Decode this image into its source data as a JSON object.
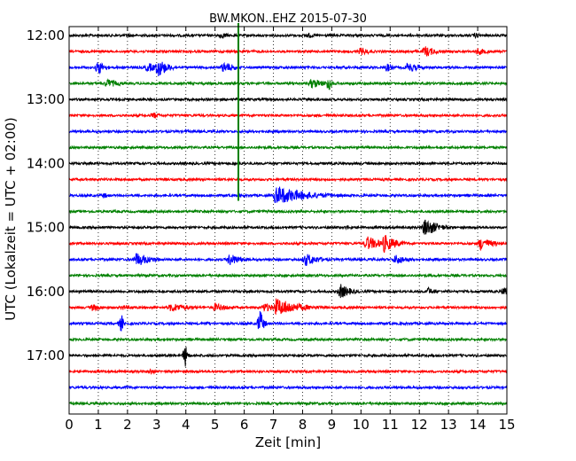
{
  "chart_data": {
    "type": "line",
    "title": "BW.MKON..EHZ 2015-07-30",
    "xlabel": "Zeit  [min]",
    "ylabel": "UTC (Lokalzeit = UTC + 02:00)",
    "xlim": [
      0,
      15
    ],
    "x_ticks": [
      "0",
      "1",
      "2",
      "3",
      "4",
      "5",
      "6",
      "7",
      "8",
      "9",
      "10",
      "11",
      "12",
      "13",
      "14",
      "15"
    ],
    "y_ticks": [
      "12:00",
      "13:00",
      "14:00",
      "15:00",
      "16:00",
      "17:00"
    ],
    "grid": "vertical dotted at every minute",
    "row_interval_min": 15,
    "start_time": "12:00",
    "row_colors": [
      "#000000",
      "#ff0000",
      "#0000ff",
      "#008000"
    ],
    "rows": [
      {
        "time": "12:00",
        "events": [
          {
            "t": 2.0,
            "a": 0.25,
            "d": 0.6
          },
          {
            "t": 5.2,
            "a": 0.35,
            "d": 0.8
          },
          {
            "t": 8.2,
            "a": 0.3,
            "d": 0.6
          },
          {
            "t": 13.9,
            "a": 0.3,
            "d": 0.7
          }
        ]
      },
      {
        "time": "12:15",
        "events": [
          {
            "t": 10.0,
            "a": 0.45,
            "d": 0.8
          },
          {
            "t": 12.2,
            "a": 0.6,
            "d": 0.9
          },
          {
            "t": 14.0,
            "a": 0.4,
            "d": 0.9
          }
        ]
      },
      {
        "time": "12:30",
        "events": [
          {
            "t": 1.0,
            "a": 0.8,
            "d": 0.5
          },
          {
            "t": 2.7,
            "a": 0.5,
            "d": 1.0
          },
          {
            "t": 3.05,
            "a": 1.0,
            "d": 0.8
          },
          {
            "t": 5.3,
            "a": 0.6,
            "d": 1.0
          },
          {
            "t": 10.9,
            "a": 0.5,
            "d": 0.4
          },
          {
            "t": 11.6,
            "a": 0.55,
            "d": 1.0
          }
        ]
      },
      {
        "time": "12:45",
        "events": [
          {
            "t": 1.3,
            "a": 0.5,
            "d": 1.0
          },
          {
            "t": 8.3,
            "a": 0.55,
            "d": 1.2
          },
          {
            "t": 8.9,
            "a": 1.0,
            "d": 0.2
          }
        ]
      },
      {
        "time": "13:00",
        "events": []
      },
      {
        "time": "13:15",
        "events": [
          {
            "t": 2.9,
            "a": 0.4,
            "d": 0.5
          }
        ]
      },
      {
        "time": "13:30",
        "events": [
          {
            "t": 4.0,
            "a": 0.2,
            "d": 0.5
          }
        ]
      },
      {
        "time": "13:45",
        "events": []
      },
      {
        "time": "14:00",
        "events": []
      },
      {
        "time": "14:15",
        "events": []
      },
      {
        "time": "14:30",
        "events": [
          {
            "t": 1.2,
            "a": 0.35,
            "d": 0.3
          },
          {
            "t": 7.1,
            "a": 1.0,
            "d": 2.5
          }
        ]
      },
      {
        "time": "14:45",
        "events": []
      },
      {
        "time": "15:00",
        "events": [
          {
            "t": 9.5,
            "a": 0.25,
            "d": 0.8
          },
          {
            "t": 12.2,
            "a": 1.0,
            "d": 1.0
          }
        ]
      },
      {
        "time": "15:15",
        "events": [
          {
            "t": 10.2,
            "a": 0.8,
            "d": 1.2
          },
          {
            "t": 10.8,
            "a": 1.0,
            "d": 0.9
          },
          {
            "t": 14.1,
            "a": 0.7,
            "d": 1.0
          }
        ]
      },
      {
        "time": "15:30",
        "events": [
          {
            "t": 2.3,
            "a": 0.75,
            "d": 1.2
          },
          {
            "t": 5.5,
            "a": 0.65,
            "d": 1.0
          },
          {
            "t": 8.1,
            "a": 0.7,
            "d": 1.1
          },
          {
            "t": 11.2,
            "a": 0.55,
            "d": 1.0
          }
        ]
      },
      {
        "time": "15:45",
        "events": []
      },
      {
        "time": "16:00",
        "events": [
          {
            "t": 9.3,
            "a": 0.8,
            "d": 0.8
          },
          {
            "t": 12.3,
            "a": 0.45,
            "d": 0.6
          },
          {
            "t": 14.9,
            "a": 0.55,
            "d": 0.6
          }
        ]
      },
      {
        "time": "16:15",
        "events": [
          {
            "t": 0.8,
            "a": 0.4,
            "d": 0.8
          },
          {
            "t": 1.8,
            "a": 0.3,
            "d": 1.0
          },
          {
            "t": 3.5,
            "a": 0.5,
            "d": 1.5
          },
          {
            "t": 5.0,
            "a": 0.45,
            "d": 1.2
          },
          {
            "t": 6.7,
            "a": 0.5,
            "d": 1.0
          },
          {
            "t": 7.1,
            "a": 1.0,
            "d": 1.8
          }
        ]
      },
      {
        "time": "16:30",
        "events": [
          {
            "t": 1.8,
            "a": 1.0,
            "d": 0.15
          },
          {
            "t": 4.7,
            "a": 0.2,
            "d": 0.6
          },
          {
            "t": 6.55,
            "a": 1.5,
            "d": 0.25
          }
        ]
      },
      {
        "time": "16:45",
        "events": []
      },
      {
        "time": "17:00",
        "events": [
          {
            "t": 4.0,
            "a": 1.3,
            "d": 0.15
          }
        ]
      },
      {
        "time": "17:15",
        "events": [
          {
            "t": 2.8,
            "a": 0.35,
            "d": 0.4
          }
        ]
      },
      {
        "time": "17:30",
        "events": [
          {
            "t": 1.0,
            "a": 0.2,
            "d": 0.8
          },
          {
            "t": 2.0,
            "a": 0.2,
            "d": 0.6
          }
        ]
      },
      {
        "time": "17:45",
        "events": []
      }
    ],
    "spikes": [
      {
        "t": 5.8,
        "from_row": 0,
        "to_row": 10,
        "color": "#008000"
      }
    ]
  }
}
